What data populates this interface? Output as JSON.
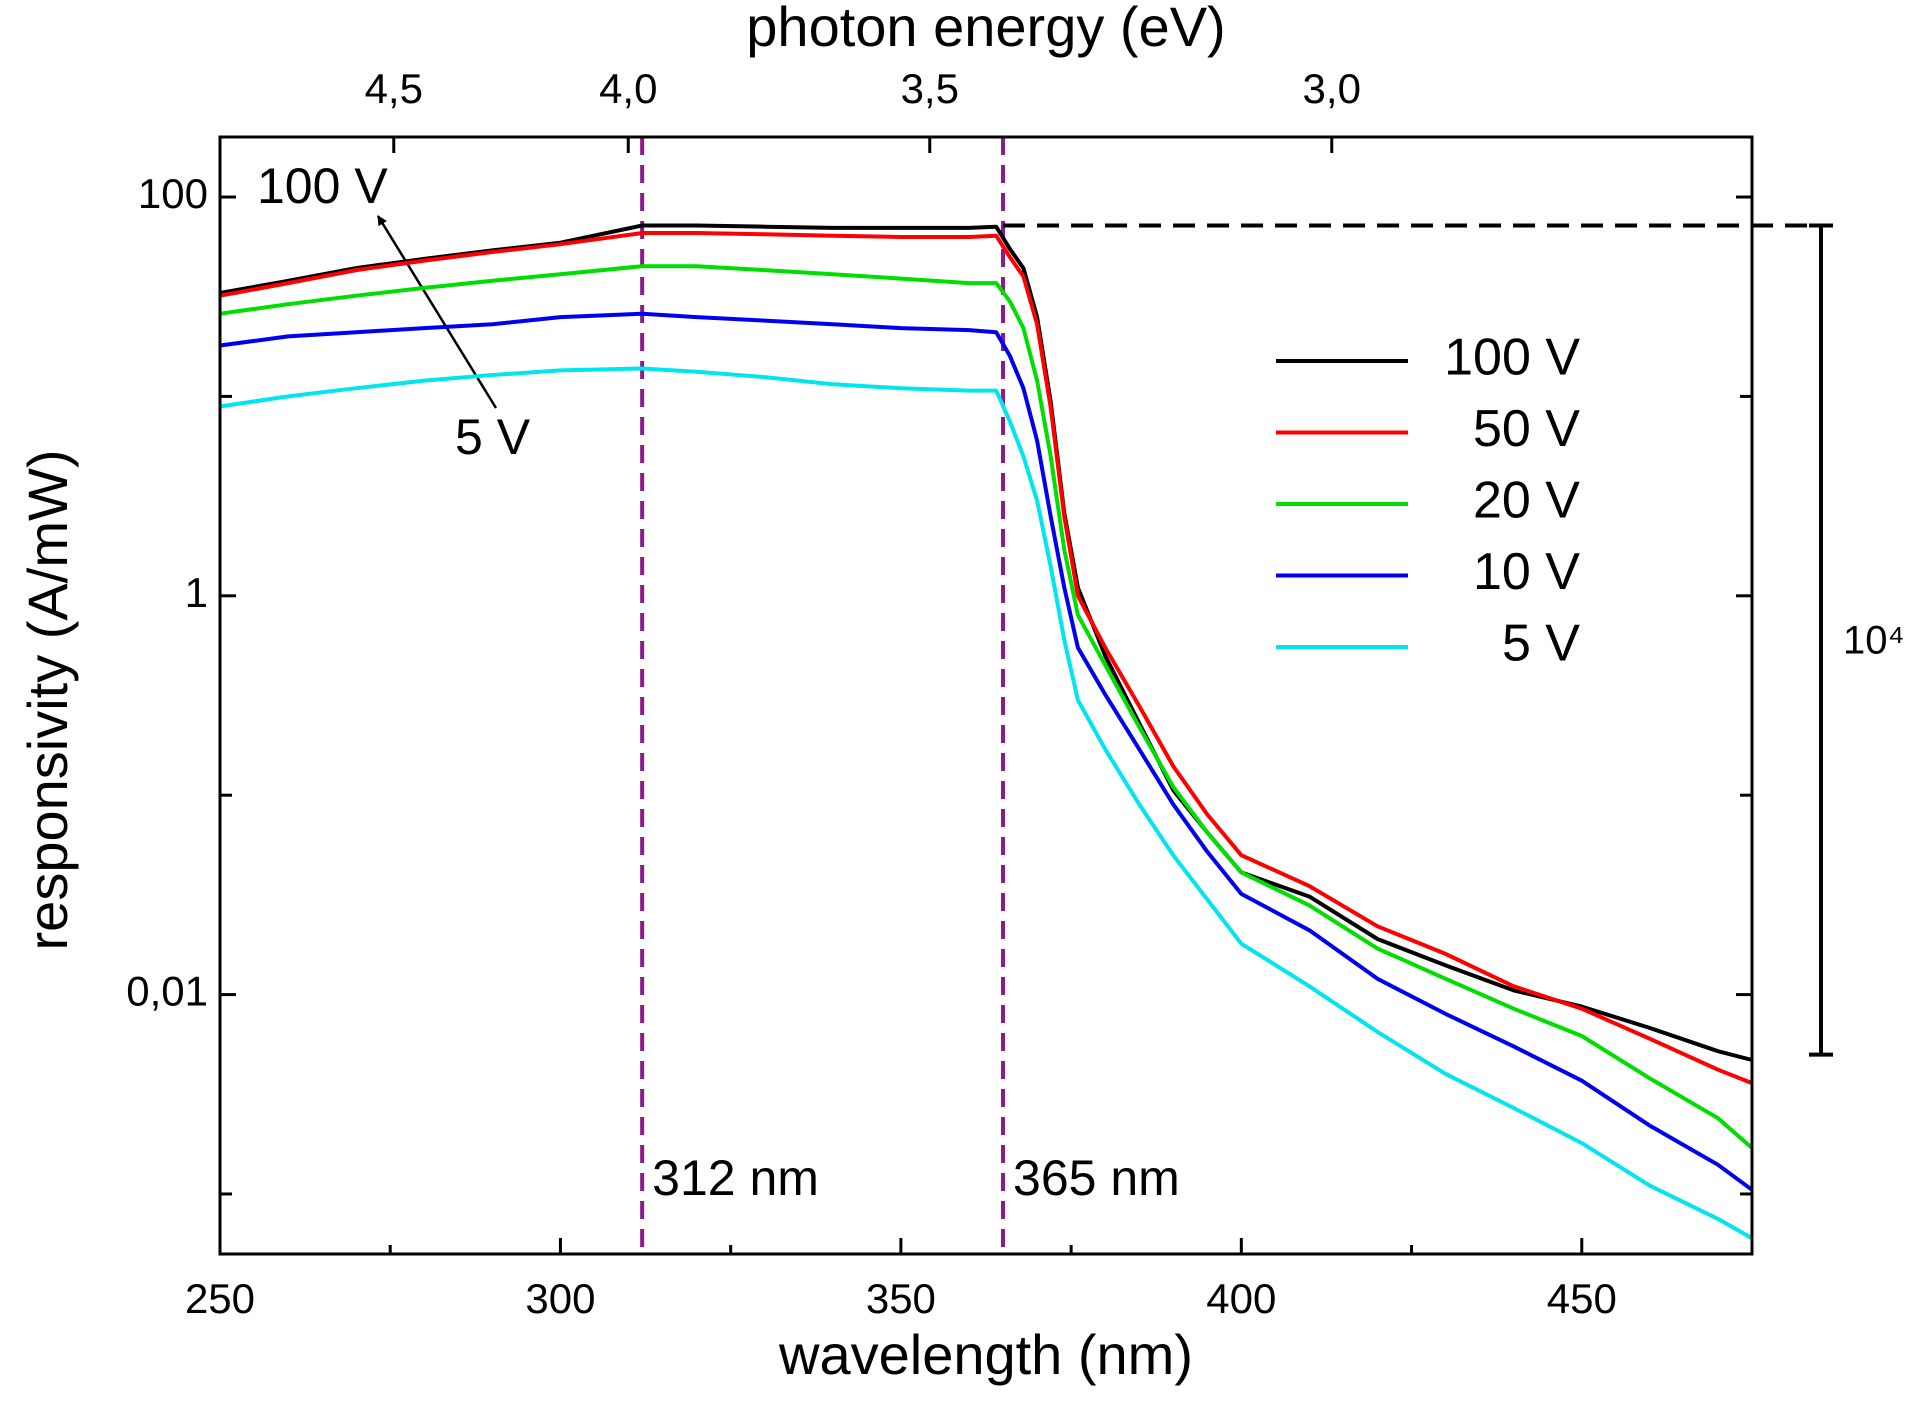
{
  "chart_data": {
    "type": "line",
    "xlabel": "wavelength (nm)",
    "ylabel": "responsivity (A/mW)",
    "x2label": "photon energy (eV)",
    "xlim": [
      250,
      475
    ],
    "xticks": [
      250,
      300,
      350,
      400,
      450
    ],
    "xminor_ticks": [
      275,
      325,
      375,
      425
    ],
    "ylim": [
      0.0005,
      200
    ],
    "log_y": true,
    "yticks": [
      100,
      1,
      {
        "value": 0.01,
        "label": "0,01"
      }
    ],
    "yminor_ticks": [
      10,
      0.1,
      0.001
    ],
    "x2ticks": [
      {
        "value": 4.5,
        "label": "4,5"
      },
      {
        "value": 4.0,
        "label": "4,0"
      },
      {
        "value": 3.5,
        "label": "3,5"
      },
      {
        "value": 3.0,
        "label": "3,0"
      }
    ],
    "grid": false,
    "legend": "right",
    "x": [
      250,
      260,
      270,
      280,
      290,
      300,
      312,
      320,
      330,
      340,
      350,
      360,
      364,
      366,
      368,
      370,
      372,
      374,
      376,
      380,
      385,
      390,
      395,
      400,
      410,
      420,
      430,
      440,
      450,
      460,
      470,
      475
    ],
    "series": [
      {
        "name": "100 V",
        "color": "#000000",
        "values": [
          33,
          38,
          44,
          49,
          54,
          59,
          72,
          72,
          71,
          70,
          70,
          70,
          71,
          55,
          44,
          25,
          9.4,
          2.6,
          1.1,
          0.5,
          0.23,
          0.106,
          0.065,
          0.041,
          0.031,
          0.019,
          0.014,
          0.0105,
          0.0087,
          0.0068,
          0.0052,
          0.0047
        ]
      },
      {
        "name": "50 V",
        "color": "#ff0000",
        "values": [
          32,
          37,
          43,
          48,
          53,
          58,
          66,
          66,
          65,
          64,
          63,
          63,
          64,
          50,
          40,
          23,
          8.8,
          2.5,
          1.0,
          0.55,
          0.28,
          0.14,
          0.08,
          0.05,
          0.035,
          0.022,
          0.016,
          0.011,
          0.0085,
          0.006,
          0.0042,
          0.0036
        ]
      },
      {
        "name": "20 V",
        "color": "#00dd00",
        "values": [
          26,
          29,
          32,
          35,
          38,
          41,
          45,
          45,
          43,
          41,
          39,
          37,
          37,
          30,
          22,
          12,
          5,
          1.7,
          0.8,
          0.45,
          0.22,
          0.11,
          0.065,
          0.041,
          0.028,
          0.017,
          0.012,
          0.0085,
          0.0062,
          0.0038,
          0.0024,
          0.0017
        ]
      },
      {
        "name": "10 V",
        "color": "#0000ee",
        "values": [
          18,
          20,
          21,
          22,
          23,
          25,
          26,
          25,
          24,
          23,
          22,
          21.5,
          21,
          16,
          11,
          6,
          2.5,
          1.1,
          0.55,
          0.32,
          0.17,
          0.09,
          0.052,
          0.032,
          0.021,
          0.012,
          0.008,
          0.0055,
          0.0037,
          0.0022,
          0.0014,
          0.00105
        ]
      },
      {
        "name": "5 V",
        "color": "#00e5ee",
        "values": [
          8.9,
          10,
          11,
          12,
          12.8,
          13.5,
          13.8,
          13.3,
          12.5,
          11.5,
          11,
          10.7,
          10.7,
          7.5,
          5,
          3,
          1.4,
          0.6,
          0.3,
          0.17,
          0.09,
          0.05,
          0.03,
          0.018,
          0.011,
          0.0065,
          0.004,
          0.0027,
          0.0018,
          0.0011,
          0.00075,
          0.0006
        ]
      }
    ],
    "vlines": [
      {
        "value": 312,
        "label": "312 nm"
      },
      {
        "value": 365,
        "label": "365 nm"
      }
    ],
    "vline_color": "#8b1a8b",
    "scale_bar": {
      "values": [
        72,
        0.005
      ],
      "label": "10⁴"
    },
    "annotations": [
      {
        "text": "100 V",
        "color": "#000000"
      },
      {
        "text": "5 V",
        "color": "#00e5ee"
      }
    ]
  }
}
